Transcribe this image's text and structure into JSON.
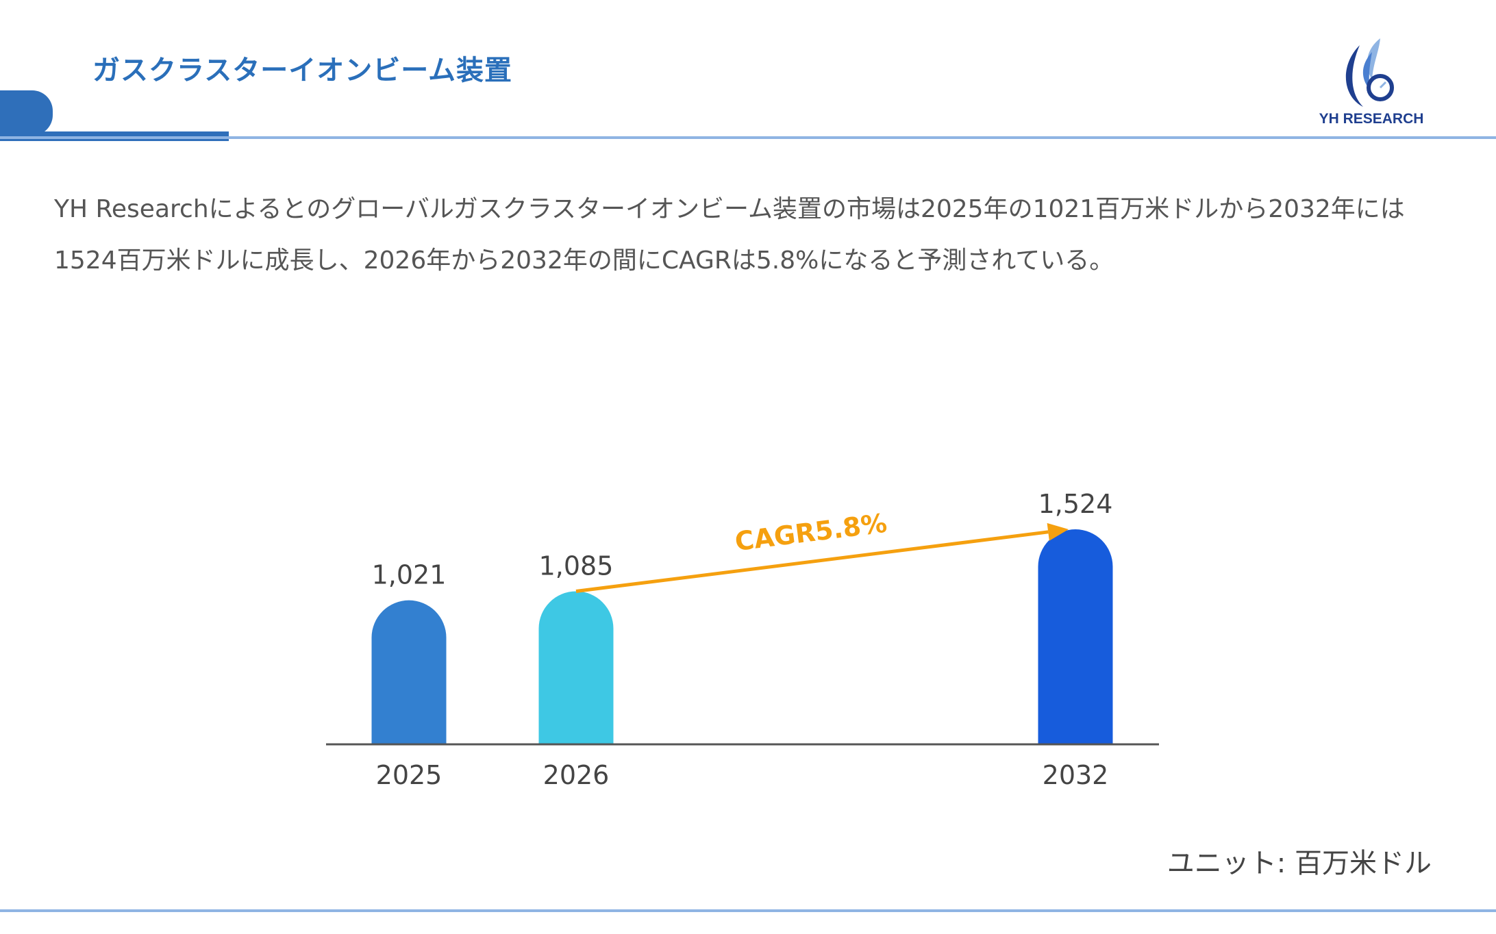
{
  "header": {
    "title": "ガスクラスターイオンビーム装置",
    "logo_text": "YH RESEARCH"
  },
  "description": "YH Researchによるとのグローバルガスクラスターイオンビーム装置の市場は2025年の1021百万米ドルから2032年には1524百万米ドルに成長し、2026年から2032年の間にCAGRは5.8%になると予測されている。",
  "unit_label": "ユニット: 百万米ドル",
  "colors": {
    "title": "#2a6fba",
    "accent_line": "#8fb4e3",
    "cagr_arrow": "#f5a00f",
    "bars": [
      "#3380d0",
      "#3ec8e4",
      "#175cdc"
    ]
  },
  "chart_data": {
    "type": "bar",
    "categories": [
      "2025",
      "2026",
      "2032"
    ],
    "values": [
      1021,
      1085,
      1524
    ],
    "value_labels": [
      "1,021",
      "1,085",
      "1,524"
    ],
    "annotation": {
      "text": "CAGR5.8%",
      "from": "2026",
      "to": "2032"
    },
    "ylim": [
      0,
      1600
    ],
    "grid": false,
    "bar_shape": "rounded-top"
  }
}
